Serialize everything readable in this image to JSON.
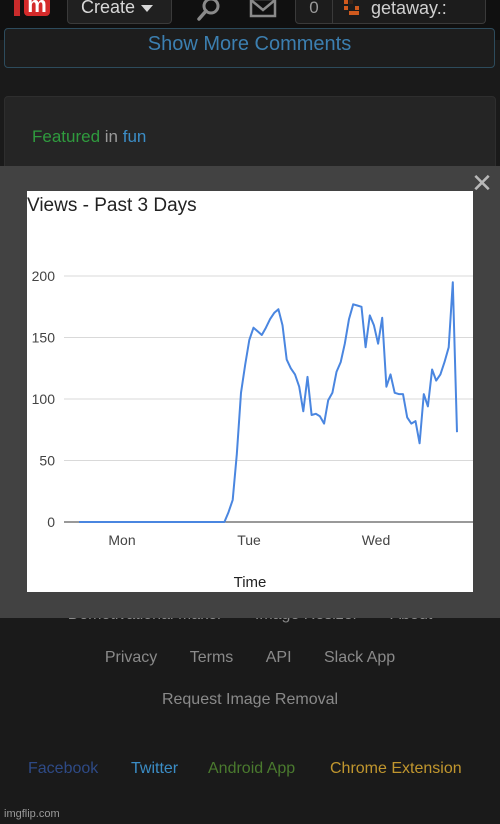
{
  "topbar": {
    "logo_letter": "m",
    "create_label": "Create",
    "notification_count": "0",
    "username": "getaway.:"
  },
  "comments": {
    "show_more_label": "Show More Comments"
  },
  "featured": {
    "prefix": "Featured",
    "in_word": "in",
    "category": "fun"
  },
  "modal": {
    "close_glyph": "✕"
  },
  "chart_data": {
    "type": "line",
    "title": "Views - Past 3 Days",
    "xlabel": "Time",
    "ylabel": "",
    "x_ticks": [
      "Mon",
      "Tue",
      "Wed"
    ],
    "y_ticks": [
      "0",
      "50",
      "100",
      "150",
      "200"
    ],
    "ylim": [
      0,
      200
    ],
    "grid": true,
    "series": [
      {
        "color": "#4a86e0",
        "values": [
          0,
          0,
          0,
          0,
          0,
          0,
          0,
          0,
          0,
          0,
          0,
          0,
          0,
          0,
          0,
          0,
          0,
          0,
          0,
          0,
          0,
          0,
          0,
          0,
          0,
          0,
          0,
          0,
          0,
          0,
          0,
          0,
          0,
          0,
          0,
          0,
          8,
          18,
          55,
          105,
          128,
          148,
          158,
          155,
          152,
          158,
          165,
          170,
          173,
          160,
          132,
          125,
          120,
          110,
          90,
          118,
          87,
          88,
          86,
          80,
          99,
          105,
          122,
          130,
          145,
          165,
          177,
          176,
          175,
          142,
          168,
          160,
          145,
          166,
          110,
          120,
          105,
          104,
          104,
          85,
          80,
          82,
          64,
          104,
          94,
          124,
          115,
          120,
          130,
          142,
          195,
          73
        ]
      }
    ]
  },
  "footer": {
    "row1": [
      "Demotivational Maker",
      "Image Resizer",
      "About"
    ],
    "row2": [
      "Privacy",
      "Terms",
      "API",
      "Slack App"
    ],
    "row3": "Request Image Removal",
    "social": [
      {
        "label": "Facebook",
        "color": "#2e4a86"
      },
      {
        "label": "Twitter",
        "color": "#3b8dc6"
      },
      {
        "label": "Android App",
        "color": "#4a7a2e"
      },
      {
        "label": "Chrome Extension",
        "color": "#c0962e"
      }
    ],
    "brand": "imgflip.com"
  }
}
